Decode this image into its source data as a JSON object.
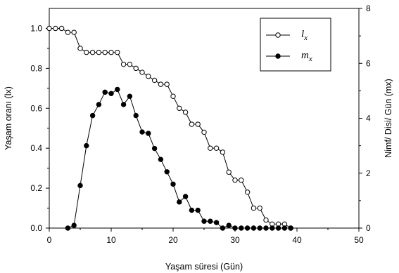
{
  "chart_data": {
    "type": "line",
    "xlabel": "Yaşam süresi (Gün)",
    "ylabel_left": "Yaşam oranı (lx)",
    "ylabel_right": "Nimf/ Disi/ Gün (mx)",
    "xlim": [
      0,
      50
    ],
    "ylim_left": [
      0,
      1.1
    ],
    "ylim_right": [
      0,
      8
    ],
    "x_ticks": [
      "0",
      "10",
      "20",
      "30",
      "40",
      "50"
    ],
    "y_left_ticks": [
      "0.0",
      "0.2",
      "0.4",
      "0.6",
      "0.8",
      "1.0"
    ],
    "y_right_ticks": [
      "0",
      "2",
      "4",
      "6",
      "8"
    ],
    "legend_position": "top-right",
    "grid": false,
    "series": [
      {
        "name": "lx",
        "axis": "left",
        "marker": "open-circle",
        "color": "#000000",
        "x": [
          0,
          1,
          2,
          3,
          4,
          5,
          6,
          7,
          8,
          9,
          10,
          11,
          12,
          13,
          14,
          15,
          16,
          17,
          18,
          19,
          20,
          21,
          22,
          23,
          24,
          25,
          26,
          27,
          28,
          29,
          30,
          31,
          32,
          33,
          34,
          35,
          36,
          37,
          38,
          39
        ],
        "values": [
          1.0,
          1.0,
          1.0,
          0.98,
          0.98,
          0.9,
          0.88,
          0.88,
          0.88,
          0.88,
          0.88,
          0.88,
          0.82,
          0.82,
          0.8,
          0.78,
          0.76,
          0.74,
          0.72,
          0.72,
          0.66,
          0.6,
          0.58,
          0.52,
          0.52,
          0.48,
          0.4,
          0.4,
          0.38,
          0.28,
          0.24,
          0.24,
          0.18,
          0.1,
          0.1,
          0.04,
          0.02,
          0.02,
          0.02,
          0.0
        ]
      },
      {
        "name": "mx",
        "axis": "right",
        "marker": "filled-circle",
        "color": "#000000",
        "x": [
          3,
          4,
          5,
          6,
          7,
          8,
          9,
          10,
          11,
          12,
          13,
          14,
          15,
          16,
          17,
          18,
          19,
          20,
          21,
          22,
          23,
          24,
          25,
          26,
          27,
          28,
          29,
          30,
          31,
          32,
          33,
          34,
          35,
          36,
          37,
          38,
          39
        ],
        "values": [
          0.0,
          0.1,
          1.55,
          3.0,
          4.1,
          4.5,
          4.95,
          4.9,
          5.05,
          4.5,
          4.8,
          4.1,
          3.5,
          3.45,
          2.9,
          2.5,
          2.05,
          1.6,
          0.95,
          1.15,
          0.65,
          0.65,
          0.25,
          0.25,
          0.2,
          0.0,
          0.1,
          0.0,
          0.0,
          0.0,
          0.0,
          0.0,
          0.0,
          0.0,
          0.0,
          0.0,
          0.0
        ]
      }
    ]
  }
}
